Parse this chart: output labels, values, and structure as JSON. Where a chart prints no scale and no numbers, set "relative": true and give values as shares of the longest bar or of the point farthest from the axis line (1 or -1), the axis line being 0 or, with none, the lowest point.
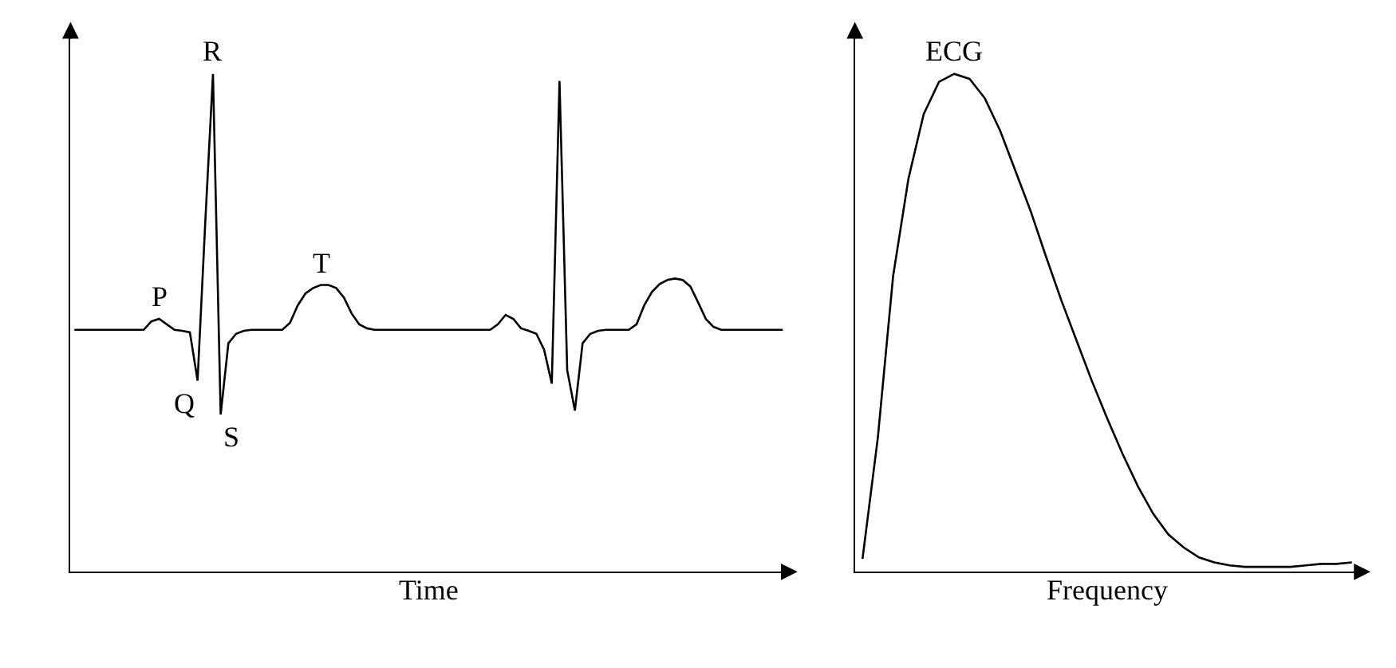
{
  "chart_data": [
    {
      "type": "line",
      "relative": true,
      "xlabel": "Time",
      "marker": "none",
      "line_style": "solid",
      "categories": [
        null,
        null,
        null,
        null,
        null,
        null,
        null,
        null,
        null,
        null,
        null,
        null,
        null,
        null,
        null,
        null,
        null,
        null,
        null,
        null,
        null,
        null,
        null,
        null,
        null,
        null,
        null,
        null,
        null,
        null,
        null,
        null,
        null,
        null,
        null,
        null,
        null,
        null,
        null,
        null,
        null,
        null,
        null,
        null,
        null,
        null,
        null,
        null,
        null,
        null,
        null,
        null,
        null,
        null,
        null,
        null,
        null,
        null,
        null,
        null,
        null,
        null,
        null,
        null,
        null,
        null,
        null,
        null,
        null,
        null,
        null,
        null,
        null,
        null,
        null,
        null,
        null,
        null,
        null,
        null,
        null,
        null,
        null,
        null,
        null,
        null,
        null,
        null,
        null,
        null,
        null,
        null,
        null
      ],
      "series": [
        {
          "color": "#000000",
          "values": [
            0.486,
            0.486,
            0.486,
            0.486,
            0.486,
            0.486,
            0.486,
            0.486,
            0.486,
            0.486,
            0.503,
            0.508,
            0.497,
            0.486,
            0.484,
            0.481,
            0.384,
            0.703,
            1.0,
            0.316,
            0.459,
            0.478,
            0.484,
            0.486,
            0.486,
            0.486,
            0.486,
            0.486,
            0.5,
            0.535,
            0.559,
            0.57,
            0.576,
            0.576,
            0.57,
            0.551,
            0.519,
            0.497,
            0.489,
            0.486,
            0.486,
            0.486,
            0.486,
            0.486,
            0.486,
            0.486,
            0.486,
            0.486,
            0.486,
            0.486,
            0.486,
            0.486,
            0.486,
            0.486,
            0.486,
            0.497,
            0.516,
            0.508,
            0.489,
            0.484,
            0.478,
            0.446,
            0.378,
            0.986,
            0.405,
            0.324,
            0.459,
            0.478,
            0.484,
            0.486,
            0.486,
            0.486,
            0.486,
            0.497,
            0.535,
            0.562,
            0.578,
            0.586,
            0.589,
            0.586,
            0.573,
            0.541,
            0.508,
            0.492,
            0.486,
            0.486,
            0.486,
            0.486,
            0.486,
            0.486,
            0.486,
            0.486,
            0.486
          ]
        }
      ],
      "annotations": [
        {
          "text": "P",
          "y": 0.508
        },
        "Q",
        {
          "text": "R",
          "y": 1.0
        },
        "S",
        {
          "text": "T",
          "y": 0.576
        }
      ]
    },
    {
      "type": "line",
      "relative": true,
      "xlabel": "Frequency",
      "marker": "none",
      "line_style": "solid",
      "categories": [
        null,
        null,
        null,
        null,
        null,
        null,
        null,
        null,
        null,
        null,
        null,
        null,
        null,
        null,
        null,
        null,
        null,
        null,
        null,
        null,
        null,
        null,
        null,
        null,
        null,
        null,
        null,
        null,
        null,
        null,
        null,
        null,
        null
      ],
      "series": [
        {
          "color": "#000000",
          "values": [
            0.026,
            0.269,
            0.594,
            0.789,
            0.919,
            0.984,
            1.0,
            0.99,
            0.951,
            0.886,
            0.805,
            0.724,
            0.633,
            0.545,
            0.464,
            0.383,
            0.308,
            0.237,
            0.172,
            0.117,
            0.075,
            0.049,
            0.029,
            0.019,
            0.013,
            0.01,
            0.01,
            0.01,
            0.01,
            0.013,
            0.016,
            0.016,
            0.019
          ]
        }
      ],
      "annotations": [
        {
          "text": "ECG",
          "y": 1.0
        }
      ]
    }
  ]
}
